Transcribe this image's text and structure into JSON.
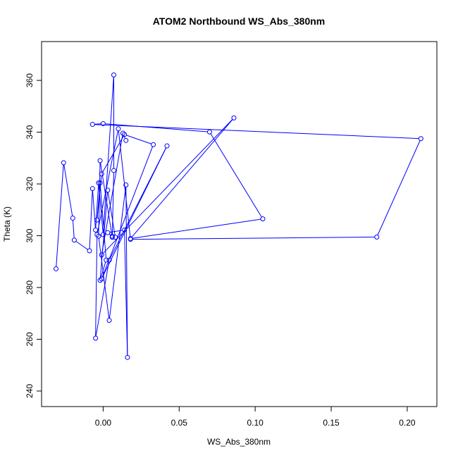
{
  "chart_data": {
    "type": "line",
    "title": "ATOM2 Northbound WS_Abs_380nm",
    "xlabel": "WS_Abs_380nm",
    "ylabel": "Theta (K)",
    "xlim": [
      -0.0405,
      0.2195
    ],
    "ylim": [
      234,
      375
    ],
    "xticks": [
      0.0,
      0.05,
      0.1,
      0.15,
      0.2
    ],
    "xtick_labels": [
      "0.00",
      "0.05",
      "0.10",
      "0.15",
      "0.20"
    ],
    "yticks": [
      240,
      260,
      280,
      300,
      320,
      340,
      360
    ],
    "ytick_labels": [
      "240",
      "260",
      "280",
      "300",
      "320",
      "340",
      "360"
    ],
    "grid": false,
    "color": "#0000ff",
    "marker": "open-circle",
    "series": [
      {
        "x": [
          -0.031,
          -0.026,
          -0.02,
          -0.019,
          -0.009,
          -0.007,
          -0.005,
          -0.003,
          0.0,
          0.007,
          0.007,
          0.006,
          0.003,
          0.014,
          0.016,
          0.015,
          0.004,
          -0.003,
          -0.002,
          0.006,
          0.008,
          0.003,
          -0.002,
          0.002,
          -0.002,
          -0.004,
          -0.001,
          0.014,
          0.033,
          -0.001,
          0.042,
          0.004,
          -0.005,
          -0.004,
          0.01,
          0.018,
          0.18,
          0.209,
          -0.007,
          0.0,
          0.07,
          0.105,
          0.018,
          0.086,
          -0.001,
          0.013,
          0.015
        ],
        "y": [
          287.2,
          328.2,
          306.8,
          298.3,
          294.2,
          318.2,
          302.2,
          320.4,
          300.4,
          362.1,
          325.2,
          299.8,
          301.2,
          302.2,
          253.0,
          319.6,
          267.3,
          299.8,
          329.0,
          299.4,
          299.4,
          317.6,
          282.8,
          290.6,
          320.4,
          306.1,
          323.9,
          339.1,
          335.2,
          283.3,
          334.7,
          290.6,
          260.4,
          300.4,
          341.3,
          298.6,
          299.5,
          337.5,
          343.0,
          343.3,
          340.1,
          306.5,
          298.9,
          345.5,
          292.6,
          339.6,
          336.8
        ]
      }
    ]
  }
}
